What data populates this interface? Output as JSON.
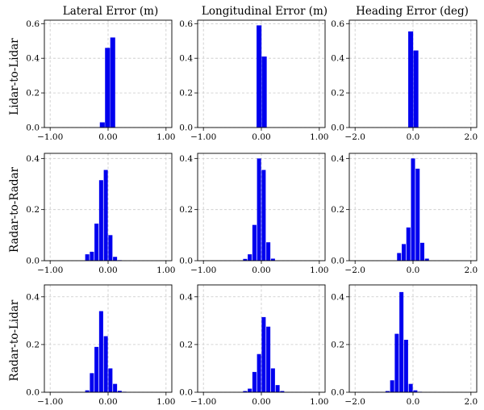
{
  "column_titles": [
    "Lateral Error (m)",
    "Longitudinal Error (m)",
    "Heading Error (deg)"
  ],
  "row_titles": [
    "Lidar-to-Lidar",
    "Radar-to-Radar",
    "Radar-to-Lidar"
  ],
  "colors": {
    "bar": "#0000ee",
    "grid": "#c8c8c8"
  },
  "chart_data": [
    {
      "type": "bar",
      "row": 0,
      "col": 0,
      "xlim": [
        -1.1,
        1.1
      ],
      "ylim": [
        0,
        0.62
      ],
      "xticks": [
        -1.0,
        0.0,
        1.0
      ],
      "xtick_labels": [
        "−1.00",
        "0.00",
        "1.00"
      ],
      "yticks": [
        0,
        0.2,
        0.4,
        0.6
      ],
      "ytick_labels": [
        "0.0",
        "0.2",
        "0.4",
        "0.6"
      ],
      "bar_width": 0.085,
      "x": [
        -0.1,
        -0.01,
        0.08
      ],
      "values": [
        0.03,
        0.46,
        0.52
      ]
    },
    {
      "type": "bar",
      "row": 0,
      "col": 1,
      "xlim": [
        -1.1,
        1.1
      ],
      "ylim": [
        0,
        0.62
      ],
      "xticks": [
        -1.0,
        0.0,
        1.0
      ],
      "xtick_labels": [
        "−1.00",
        "0.00",
        "1.00"
      ],
      "yticks": [
        0,
        0.2,
        0.4,
        0.6
      ],
      "ytick_labels": [
        "0.0",
        "0.2",
        "0.4",
        "0.6"
      ],
      "bar_width": 0.085,
      "x": [
        -0.04,
        0.05
      ],
      "values": [
        0.59,
        0.41
      ]
    },
    {
      "type": "bar",
      "row": 0,
      "col": 2,
      "xlim": [
        -2.2,
        2.2
      ],
      "ylim": [
        0,
        0.62
      ],
      "xticks": [
        -2.0,
        0.0,
        2.0
      ],
      "xtick_labels": [
        "−2.0",
        "0.0",
        "2.0"
      ],
      "yticks": [
        0,
        0.2,
        0.4,
        0.6
      ],
      "ytick_labels": [
        "0.0",
        "0.2",
        "0.4",
        "0.6"
      ],
      "bar_width": 0.17,
      "x": [
        -0.08,
        0.1
      ],
      "values": [
        0.555,
        0.445
      ]
    },
    {
      "type": "bar",
      "row": 1,
      "col": 0,
      "xlim": [
        -1.1,
        1.1
      ],
      "ylim": [
        0,
        0.42
      ],
      "xticks": [
        -1.0,
        0.0,
        1.0
      ],
      "xtick_labels": [
        "−1.00",
        "0.00",
        "1.00"
      ],
      "yticks": [
        0,
        0.2,
        0.4
      ],
      "ytick_labels": [
        "0.0",
        "0.2",
        "0.4"
      ],
      "bar_width": 0.07,
      "x": [
        -0.36,
        -0.28,
        -0.2,
        -0.12,
        -0.04,
        0.04,
        0.12,
        0.2
      ],
      "values": [
        0.025,
        0.035,
        0.145,
        0.315,
        0.355,
        0.1,
        0.015,
        0.002
      ]
    },
    {
      "type": "bar",
      "row": 1,
      "col": 1,
      "xlim": [
        -1.1,
        1.1
      ],
      "ylim": [
        0,
        0.42
      ],
      "xticks": [
        -1.0,
        0.0,
        1.0
      ],
      "xtick_labels": [
        "−1.00",
        "0.00",
        "1.00"
      ],
      "yticks": [
        0,
        0.2,
        0.4
      ],
      "ytick_labels": [
        "0.0",
        "0.2",
        "0.4"
      ],
      "bar_width": 0.07,
      "x": [
        -0.28,
        -0.2,
        -0.12,
        -0.04,
        0.04,
        0.12,
        0.2
      ],
      "values": [
        0.007,
        0.025,
        0.14,
        0.4,
        0.355,
        0.072,
        0.008
      ]
    },
    {
      "type": "bar",
      "row": 1,
      "col": 2,
      "xlim": [
        -2.2,
        2.2
      ],
      "ylim": [
        0,
        0.42
      ],
      "xticks": [
        -2.0,
        0.0,
        2.0
      ],
      "xtick_labels": [
        "−2.0",
        "0.0",
        "2.0"
      ],
      "yticks": [
        0,
        0.2,
        0.4
      ],
      "ytick_labels": [
        "0.0",
        "0.2",
        "0.4"
      ],
      "bar_width": 0.14,
      "x": [
        -0.48,
        -0.32,
        -0.16,
        0.0,
        0.16,
        0.32,
        0.48
      ],
      "values": [
        0.03,
        0.065,
        0.13,
        0.4,
        0.36,
        0.07,
        0.008
      ]
    },
    {
      "type": "bar",
      "row": 2,
      "col": 0,
      "xlim": [
        -1.1,
        1.1
      ],
      "ylim": [
        0,
        0.45
      ],
      "xticks": [
        -1.0,
        0.0,
        1.0
      ],
      "xtick_labels": [
        "−1.00",
        "0.00",
        "1.00"
      ],
      "yticks": [
        0,
        0.2,
        0.4
      ],
      "ytick_labels": [
        "0.0",
        "0.2",
        "0.4"
      ],
      "bar_width": 0.07,
      "x": [
        -0.36,
        -0.28,
        -0.2,
        -0.12,
        -0.04,
        0.04,
        0.12,
        0.2,
        0.28
      ],
      "values": [
        0.008,
        0.08,
        0.19,
        0.34,
        0.235,
        0.1,
        0.035,
        0.006,
        0.002
      ]
    },
    {
      "type": "bar",
      "row": 2,
      "col": 1,
      "xlim": [
        -1.1,
        1.1
      ],
      "ylim": [
        0,
        0.45
      ],
      "xticks": [
        -1.0,
        0.0,
        1.0
      ],
      "xtick_labels": [
        "−1.00",
        "0.00",
        "1.00"
      ],
      "yticks": [
        0,
        0.2,
        0.4
      ],
      "ytick_labels": [
        "0.0",
        "0.2",
        "0.4"
      ],
      "bar_width": 0.07,
      "x": [
        -0.28,
        -0.2,
        -0.12,
        -0.04,
        0.04,
        0.12,
        0.2,
        0.28,
        0.36
      ],
      "values": [
        0.005,
        0.015,
        0.085,
        0.16,
        0.315,
        0.275,
        0.1,
        0.03,
        0.005
      ]
    },
    {
      "type": "bar",
      "row": 2,
      "col": 2,
      "xlim": [
        -2.2,
        2.2
      ],
      "ylim": [
        0,
        0.45
      ],
      "xticks": [
        -2.0,
        0.0,
        2.0
      ],
      "xtick_labels": [
        "−2.0",
        "0.0",
        "2.0"
      ],
      "yticks": [
        0,
        0.2,
        0.4
      ],
      "ytick_labels": [
        "0.0",
        "0.2",
        "0.4"
      ],
      "bar_width": 0.14,
      "x": [
        -0.88,
        -0.72,
        -0.56,
        -0.4,
        -0.24,
        -0.08,
        0.08,
        0.24
      ],
      "values": [
        0.005,
        0.05,
        0.245,
        0.42,
        0.22,
        0.035,
        0.008,
        0.002
      ]
    }
  ]
}
